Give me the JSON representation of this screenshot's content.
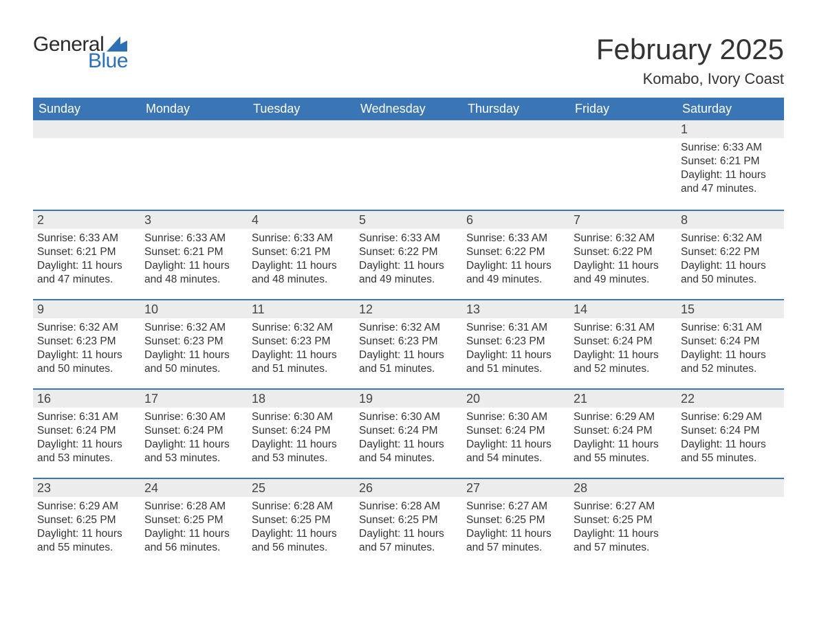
{
  "brand": {
    "word1": "General",
    "word2": "Blue",
    "accent_color": "#2d6fb4",
    "text_color": "#2b2b2b"
  },
  "title": "February 2025",
  "location": "Komabo, Ivory Coast",
  "colors": {
    "header_bg": "#3a76b6",
    "header_text": "#ffffff",
    "daynum_bg": "#ececec",
    "rule": "#3a76b6",
    "body_text": "#333333",
    "page_bg": "#ffffff"
  },
  "day_headers": [
    "Sunday",
    "Monday",
    "Tuesday",
    "Wednesday",
    "Thursday",
    "Friday",
    "Saturday"
  ],
  "weeks": [
    [
      {
        "empty": true
      },
      {
        "empty": true
      },
      {
        "empty": true
      },
      {
        "empty": true
      },
      {
        "empty": true
      },
      {
        "empty": true
      },
      {
        "day": "1",
        "sunrise": "Sunrise: 6:33 AM",
        "sunset": "Sunset: 6:21 PM",
        "daylight": "Daylight: 11 hours and 47 minutes."
      }
    ],
    [
      {
        "day": "2",
        "sunrise": "Sunrise: 6:33 AM",
        "sunset": "Sunset: 6:21 PM",
        "daylight": "Daylight: 11 hours and 47 minutes."
      },
      {
        "day": "3",
        "sunrise": "Sunrise: 6:33 AM",
        "sunset": "Sunset: 6:21 PM",
        "daylight": "Daylight: 11 hours and 48 minutes."
      },
      {
        "day": "4",
        "sunrise": "Sunrise: 6:33 AM",
        "sunset": "Sunset: 6:21 PM",
        "daylight": "Daylight: 11 hours and 48 minutes."
      },
      {
        "day": "5",
        "sunrise": "Sunrise: 6:33 AM",
        "sunset": "Sunset: 6:22 PM",
        "daylight": "Daylight: 11 hours and 49 minutes."
      },
      {
        "day": "6",
        "sunrise": "Sunrise: 6:33 AM",
        "sunset": "Sunset: 6:22 PM",
        "daylight": "Daylight: 11 hours and 49 minutes."
      },
      {
        "day": "7",
        "sunrise": "Sunrise: 6:32 AM",
        "sunset": "Sunset: 6:22 PM",
        "daylight": "Daylight: 11 hours and 49 minutes."
      },
      {
        "day": "8",
        "sunrise": "Sunrise: 6:32 AM",
        "sunset": "Sunset: 6:22 PM",
        "daylight": "Daylight: 11 hours and 50 minutes."
      }
    ],
    [
      {
        "day": "9",
        "sunrise": "Sunrise: 6:32 AM",
        "sunset": "Sunset: 6:23 PM",
        "daylight": "Daylight: 11 hours and 50 minutes."
      },
      {
        "day": "10",
        "sunrise": "Sunrise: 6:32 AM",
        "sunset": "Sunset: 6:23 PM",
        "daylight": "Daylight: 11 hours and 50 minutes."
      },
      {
        "day": "11",
        "sunrise": "Sunrise: 6:32 AM",
        "sunset": "Sunset: 6:23 PM",
        "daylight": "Daylight: 11 hours and 51 minutes."
      },
      {
        "day": "12",
        "sunrise": "Sunrise: 6:32 AM",
        "sunset": "Sunset: 6:23 PM",
        "daylight": "Daylight: 11 hours and 51 minutes."
      },
      {
        "day": "13",
        "sunrise": "Sunrise: 6:31 AM",
        "sunset": "Sunset: 6:23 PM",
        "daylight": "Daylight: 11 hours and 51 minutes."
      },
      {
        "day": "14",
        "sunrise": "Sunrise: 6:31 AM",
        "sunset": "Sunset: 6:24 PM",
        "daylight": "Daylight: 11 hours and 52 minutes."
      },
      {
        "day": "15",
        "sunrise": "Sunrise: 6:31 AM",
        "sunset": "Sunset: 6:24 PM",
        "daylight": "Daylight: 11 hours and 52 minutes."
      }
    ],
    [
      {
        "day": "16",
        "sunrise": "Sunrise: 6:31 AM",
        "sunset": "Sunset: 6:24 PM",
        "daylight": "Daylight: 11 hours and 53 minutes."
      },
      {
        "day": "17",
        "sunrise": "Sunrise: 6:30 AM",
        "sunset": "Sunset: 6:24 PM",
        "daylight": "Daylight: 11 hours and 53 minutes."
      },
      {
        "day": "18",
        "sunrise": "Sunrise: 6:30 AM",
        "sunset": "Sunset: 6:24 PM",
        "daylight": "Daylight: 11 hours and 53 minutes."
      },
      {
        "day": "19",
        "sunrise": "Sunrise: 6:30 AM",
        "sunset": "Sunset: 6:24 PM",
        "daylight": "Daylight: 11 hours and 54 minutes."
      },
      {
        "day": "20",
        "sunrise": "Sunrise: 6:30 AM",
        "sunset": "Sunset: 6:24 PM",
        "daylight": "Daylight: 11 hours and 54 minutes."
      },
      {
        "day": "21",
        "sunrise": "Sunrise: 6:29 AM",
        "sunset": "Sunset: 6:24 PM",
        "daylight": "Daylight: 11 hours and 55 minutes."
      },
      {
        "day": "22",
        "sunrise": "Sunrise: 6:29 AM",
        "sunset": "Sunset: 6:24 PM",
        "daylight": "Daylight: 11 hours and 55 minutes."
      }
    ],
    [
      {
        "day": "23",
        "sunrise": "Sunrise: 6:29 AM",
        "sunset": "Sunset: 6:25 PM",
        "daylight": "Daylight: 11 hours and 55 minutes."
      },
      {
        "day": "24",
        "sunrise": "Sunrise: 6:28 AM",
        "sunset": "Sunset: 6:25 PM",
        "daylight": "Daylight: 11 hours and 56 minutes."
      },
      {
        "day": "25",
        "sunrise": "Sunrise: 6:28 AM",
        "sunset": "Sunset: 6:25 PM",
        "daylight": "Daylight: 11 hours and 56 minutes."
      },
      {
        "day": "26",
        "sunrise": "Sunrise: 6:28 AM",
        "sunset": "Sunset: 6:25 PM",
        "daylight": "Daylight: 11 hours and 57 minutes."
      },
      {
        "day": "27",
        "sunrise": "Sunrise: 6:27 AM",
        "sunset": "Sunset: 6:25 PM",
        "daylight": "Daylight: 11 hours and 57 minutes."
      },
      {
        "day": "28",
        "sunrise": "Sunrise: 6:27 AM",
        "sunset": "Sunset: 6:25 PM",
        "daylight": "Daylight: 11 hours and 57 minutes."
      },
      {
        "empty": true
      }
    ]
  ]
}
